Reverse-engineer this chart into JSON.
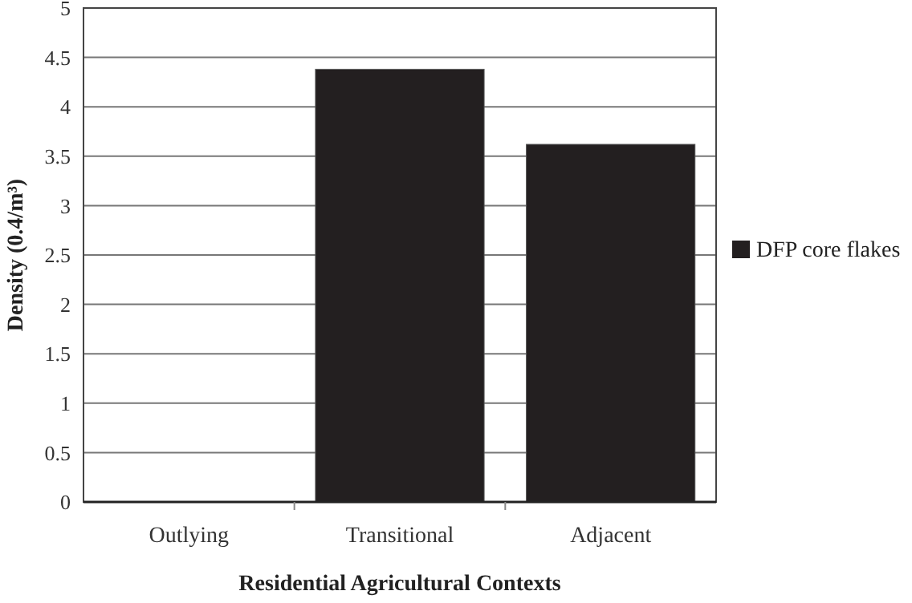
{
  "chart_data": {
    "type": "bar",
    "xlabel": "Residential Agricultural Contexts",
    "ylabel": "Density (0.4/m³)",
    "categories": [
      "Outlying",
      "Transitional",
      "Adjacent"
    ],
    "series": [
      {
        "name": "DFP core flakes",
        "color": "#231f20",
        "values": [
          0,
          4.38,
          3.62
        ]
      }
    ],
    "ylim": [
      0,
      5
    ],
    "yticks": [
      0,
      0.5,
      1,
      1.5,
      2,
      2.5,
      3,
      3.5,
      4,
      4.5,
      5
    ],
    "grid": "y",
    "legend": "right"
  }
}
